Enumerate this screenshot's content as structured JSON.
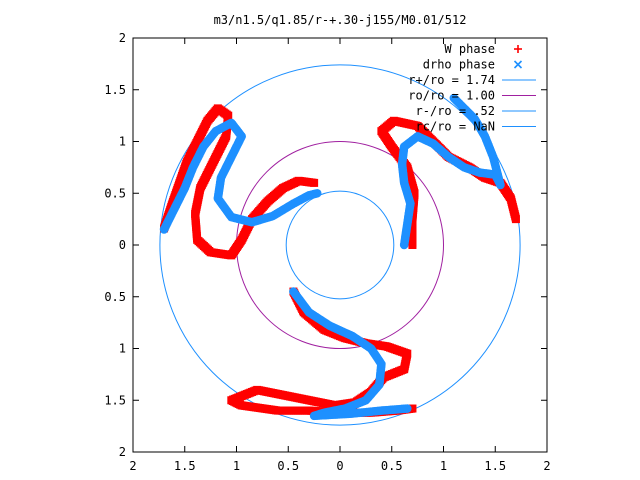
{
  "chart_data": {
    "type": "scatter",
    "title": "m3/n1.5/q1.85/r-+.30-j155/M0.01/512",
    "xlim": [
      -2,
      2
    ],
    "ylim": [
      -2,
      2
    ],
    "x_ticks": [
      -2,
      -1.5,
      -1,
      -0.5,
      0,
      0.5,
      1,
      1.5,
      2
    ],
    "y_ticks": [
      -2,
      -1.5,
      -1,
      -0.5,
      0,
      0.5,
      1,
      1.5,
      2
    ],
    "x_tick_labels": [
      "2",
      "1.5",
      "1",
      "0.5",
      "0",
      "0.5",
      "1",
      "1.5",
      "2"
    ],
    "y_tick_labels": [
      "2",
      "1.5",
      "1",
      "0.5",
      "0",
      "0.5",
      "1",
      "1.5",
      "2"
    ],
    "grid": false,
    "legend_position": "top-right",
    "series": [
      {
        "name": "W phase",
        "marker": "plus",
        "color": "#ff0000",
        "arms": [
          [
            [
              -1.7,
              0.16
            ],
            [
              -1.62,
              0.4
            ],
            [
              -1.55,
              0.6
            ],
            [
              -1.48,
              0.8
            ],
            [
              -1.38,
              1.0
            ],
            [
              -1.28,
              1.2
            ],
            [
              -1.18,
              1.32
            ],
            [
              -1.08,
              1.25
            ],
            [
              -1.1,
              1.05
            ],
            [
              -1.2,
              0.85
            ],
            [
              -1.35,
              0.55
            ],
            [
              -1.4,
              0.3
            ],
            [
              -1.38,
              0.05
            ],
            [
              -1.25,
              -0.07
            ],
            [
              -1.05,
              -0.1
            ],
            [
              -0.95,
              0.05
            ],
            [
              -0.85,
              0.25
            ],
            [
              -0.7,
              0.42
            ],
            [
              -0.55,
              0.55
            ],
            [
              -0.4,
              0.62
            ],
            [
              -0.25,
              0.6
            ]
          ],
          [
            [
              -0.45,
              -0.45
            ],
            [
              -0.35,
              -0.65
            ],
            [
              -0.15,
              -0.82
            ],
            [
              0.05,
              -0.9
            ],
            [
              0.25,
              -0.95
            ],
            [
              0.45,
              -0.98
            ],
            [
              0.65,
              -1.05
            ],
            [
              0.62,
              -1.2
            ],
            [
              0.42,
              -1.28
            ],
            [
              0.3,
              -1.42
            ],
            [
              0.15,
              -1.52
            ],
            [
              -0.05,
              -1.55
            ],
            [
              -0.3,
              -1.5
            ],
            [
              -0.55,
              -1.45
            ],
            [
              -0.8,
              -1.4
            ],
            [
              -1.05,
              -1.5
            ],
            [
              -0.95,
              -1.55
            ],
            [
              -0.6,
              -1.6
            ],
            [
              -0.3,
              -1.6
            ],
            [
              0.0,
              -1.62
            ],
            [
              0.3,
              -1.62
            ],
            [
              0.55,
              -1.6
            ],
            [
              0.7,
              -1.58
            ]
          ],
          [
            [
              0.7,
              0.0
            ],
            [
              0.7,
              0.25
            ],
            [
              0.72,
              0.5
            ],
            [
              0.65,
              0.75
            ],
            [
              0.5,
              0.95
            ],
            [
              0.4,
              1.1
            ],
            [
              0.52,
              1.2
            ],
            [
              0.75,
              1.15
            ],
            [
              0.9,
              1.0
            ],
            [
              1.05,
              0.85
            ],
            [
              1.25,
              0.75
            ],
            [
              1.4,
              0.65
            ],
            [
              1.55,
              0.6
            ],
            [
              1.65,
              0.45
            ],
            [
              1.7,
              0.25
            ]
          ]
        ]
      },
      {
        "name": "drho phase",
        "marker": "cross",
        "color": "#1e90ff",
        "arms": [
          [
            [
              -1.7,
              0.15
            ],
            [
              -1.6,
              0.35
            ],
            [
              -1.5,
              0.55
            ],
            [
              -1.42,
              0.75
            ],
            [
              -1.32,
              0.95
            ],
            [
              -1.2,
              1.1
            ],
            [
              -1.05,
              1.18
            ],
            [
              -0.95,
              1.05
            ],
            [
              -1.05,
              0.85
            ],
            [
              -1.15,
              0.65
            ],
            [
              -1.18,
              0.45
            ],
            [
              -1.05,
              0.27
            ],
            [
              -0.85,
              0.22
            ],
            [
              -0.65,
              0.28
            ],
            [
              -0.45,
              0.4
            ],
            [
              -0.3,
              0.48
            ],
            [
              -0.22,
              0.5
            ]
          ],
          [
            [
              -0.45,
              -0.45
            ],
            [
              -0.3,
              -0.65
            ],
            [
              -0.1,
              -0.78
            ],
            [
              0.12,
              -0.88
            ],
            [
              0.3,
              -1.0
            ],
            [
              0.4,
              -1.15
            ],
            [
              0.38,
              -1.35
            ],
            [
              0.25,
              -1.5
            ],
            [
              0.05,
              -1.58
            ],
            [
              -0.15,
              -1.62
            ],
            [
              -0.25,
              -1.65
            ],
            [
              0.1,
              -1.63
            ],
            [
              0.4,
              -1.6
            ],
            [
              0.65,
              -1.58
            ]
          ],
          [
            [
              0.62,
              0.0
            ],
            [
              0.65,
              0.2
            ],
            [
              0.68,
              0.4
            ],
            [
              0.62,
              0.6
            ],
            [
              0.6,
              0.78
            ],
            [
              0.62,
              0.95
            ],
            [
              0.75,
              1.05
            ],
            [
              0.9,
              0.98
            ],
            [
              1.05,
              0.85
            ],
            [
              1.2,
              0.75
            ],
            [
              1.35,
              0.7
            ],
            [
              1.5,
              0.68
            ],
            [
              1.55,
              0.58
            ],
            [
              1.48,
              0.85
            ],
            [
              1.4,
              1.05
            ],
            [
              1.3,
              1.22
            ],
            [
              1.2,
              1.32
            ],
            [
              1.1,
              1.42
            ]
          ]
        ]
      },
      {
        "name": "r+/ro = 1.74",
        "kind": "circle",
        "radius": 1.74,
        "color": "#1e90ff"
      },
      {
        "name": "ro/ro = 1.00",
        "kind": "circle",
        "radius": 1.0,
        "color": "#a020a0"
      },
      {
        "name": "r-/ro = .52",
        "kind": "circle",
        "radius": 0.52,
        "color": "#1e90ff"
      },
      {
        "name": "rc/ro = NaN",
        "kind": "line",
        "color": "#1e90ff"
      }
    ]
  }
}
